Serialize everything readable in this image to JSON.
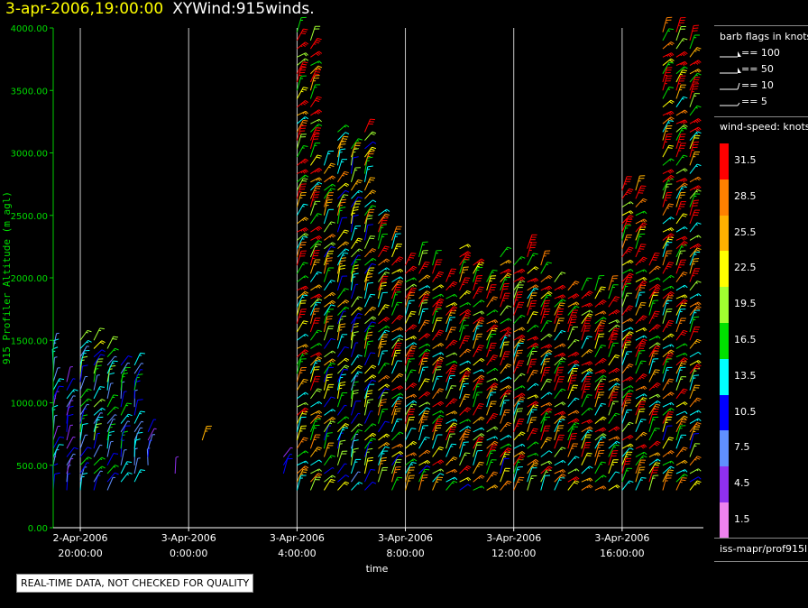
{
  "header": {
    "datetime": "3-apr-2006,19:00:00",
    "product": "XYWind:915winds."
  },
  "notice": "REAL-TIME DATA, NOT CHECKED FOR QUALITY",
  "legend": {
    "barb_title": "barb flags in knots",
    "flags": [
      {
        "label": "== 100",
        "icon": "pennant-100"
      },
      {
        "label": "== 50",
        "icon": "pennant-50"
      },
      {
        "label": "== 10",
        "icon": "full-barb-10"
      },
      {
        "label": "== 5",
        "icon": "half-barb-5"
      }
    ],
    "speed_title": "wind-speed: knots",
    "colorbar": [
      {
        "label": "31.5",
        "color": "#ff0000"
      },
      {
        "label": "28.5",
        "color": "#ff8000"
      },
      {
        "label": "25.5",
        "color": "#ffb000"
      },
      {
        "label": "22.5",
        "color": "#ffff00"
      },
      {
        "label": "19.5",
        "color": "#a0ff30"
      },
      {
        "label": "16.5",
        "color": "#00e000"
      },
      {
        "label": "13.5",
        "color": "#00ffff"
      },
      {
        "label": "10.5",
        "color": "#0000ff"
      },
      {
        "label": "7.5",
        "color": "#6090ff"
      },
      {
        "label": "4.5",
        "color": "#9030f0"
      },
      {
        "label": "1.5",
        "color": "#ee82ee"
      }
    ],
    "source": "iss-mapr/prof915l"
  },
  "chart_data": {
    "type": "scatter",
    "title": "3-apr-2006,19:00:00 XYWind:915winds.",
    "xlabel": "time",
    "ylabel": "915 Profiler Altitude (m agl)",
    "xlim": [
      "2006-04-02T19:00",
      "2006-04-03T19:00"
    ],
    "ylim": [
      0,
      4000
    ],
    "yticks": [
      "0.00",
      "500.00",
      "1000.00",
      "1500.00",
      "2000.00",
      "2500.00",
      "3000.00",
      "3500.00",
      "4000.00"
    ],
    "xticks": [
      {
        "line1": "2-Apr-2006",
        "line2": "20:00:00"
      },
      {
        "line1": "3-Apr-2006",
        "line2": "0:00:00"
      },
      {
        "line1": "3-Apr-2006",
        "line2": "4:00:00"
      },
      {
        "line1": "3-Apr-2006",
        "line2": "8:00:00"
      },
      {
        "line1": "3-Apr-2006",
        "line2": "12:00:00"
      },
      {
        "line1": "3-Apr-2006",
        "line2": "16:00:00"
      }
    ],
    "grid": "vertical",
    "profiles": [
      {
        "time": "19:00",
        "bottom": 250,
        "top": 1450,
        "speed": 12,
        "dir": 200
      },
      {
        "time": "19:30",
        "bottom": 300,
        "top": 1200,
        "speed": 10,
        "dir": 210
      },
      {
        "time": "20:00",
        "bottom": 250,
        "top": 1500,
        "speed": 15,
        "dir": 215
      },
      {
        "time": "20:30",
        "bottom": 300,
        "top": 1500,
        "speed": 17,
        "dir": 220
      },
      {
        "time": "21:00",
        "bottom": 300,
        "top": 1450,
        "speed": 16,
        "dir": 215
      },
      {
        "time": "21:30",
        "bottom": 350,
        "top": 1350,
        "speed": 15,
        "dir": 210
      },
      {
        "time": "22:00",
        "bottom": 350,
        "top": 1300,
        "speed": 13,
        "dir": 205
      },
      {
        "time": "22:30",
        "bottom": 450,
        "top": 800,
        "speed": 9,
        "dir": 200
      },
      {
        "time": "23:30",
        "bottom": 400,
        "top": 450,
        "speed": 8,
        "dir": 210
      },
      {
        "time": "0:30",
        "bottom": 650,
        "top": 700,
        "speed": 21,
        "dir": 200
      },
      {
        "time": "3:30",
        "bottom": 400,
        "top": 600,
        "speed": 11,
        "dir": 210
      },
      {
        "time": "4:00",
        "bottom": 300,
        "top": 4000,
        "speed": 30,
        "dir": 230
      },
      {
        "time": "4:30",
        "bottom": 250,
        "top": 3950,
        "speed": 30,
        "dir": 230
      },
      {
        "time": "5:00",
        "bottom": 300,
        "top": 2900,
        "speed": 24,
        "dir": 225
      },
      {
        "time": "5:30",
        "bottom": 250,
        "top": 3200,
        "speed": 22,
        "dir": 220
      },
      {
        "time": "6:00",
        "bottom": 300,
        "top": 3050,
        "speed": 20,
        "dir": 215
      },
      {
        "time": "6:30",
        "bottom": 300,
        "top": 3200,
        "speed": 23,
        "dir": 220
      },
      {
        "time": "7:00",
        "bottom": 350,
        "top": 2500,
        "speed": 26,
        "dir": 225
      },
      {
        "time": "7:30",
        "bottom": 300,
        "top": 2350,
        "speed": 28,
        "dir": 230
      },
      {
        "time": "8:00",
        "bottom": 250,
        "top": 2100,
        "speed": 29,
        "dir": 230
      },
      {
        "time": "8:30",
        "bottom": 300,
        "top": 2200,
        "speed": 28,
        "dir": 228
      },
      {
        "time": "9:00",
        "bottom": 300,
        "top": 2100,
        "speed": 30,
        "dir": 230
      },
      {
        "time": "9:30",
        "bottom": 300,
        "top": 2000,
        "speed": 30,
        "dir": 232
      },
      {
        "time": "10:00",
        "bottom": 250,
        "top": 2250,
        "speed": 30,
        "dir": 230
      },
      {
        "time": "10:30",
        "bottom": 300,
        "top": 2100,
        "speed": 30,
        "dir": 230
      },
      {
        "time": "11:00",
        "bottom": 250,
        "top": 2000,
        "speed": 31,
        "dir": 232
      },
      {
        "time": "11:30",
        "bottom": 250,
        "top": 2200,
        "speed": 30,
        "dir": 230
      },
      {
        "time": "12:00",
        "bottom": 250,
        "top": 2100,
        "speed": 31,
        "dir": 230
      },
      {
        "time": "12:30",
        "bottom": 250,
        "top": 2250,
        "speed": 30,
        "dir": 232
      },
      {
        "time": "13:00",
        "bottom": 250,
        "top": 2100,
        "speed": 30,
        "dir": 230
      },
      {
        "time": "13:30",
        "bottom": 250,
        "top": 2000,
        "speed": 31,
        "dir": 232
      },
      {
        "time": "14:00",
        "bottom": 250,
        "top": 1950,
        "speed": 31,
        "dir": 230
      },
      {
        "time": "14:30",
        "bottom": 250,
        "top": 1900,
        "speed": 31,
        "dir": 232
      },
      {
        "time": "15:00",
        "bottom": 250,
        "top": 1900,
        "speed": 31,
        "dir": 230
      },
      {
        "time": "15:30",
        "bottom": 250,
        "top": 1900,
        "speed": 31,
        "dir": 232
      },
      {
        "time": "16:00",
        "bottom": 250,
        "top": 2700,
        "speed": 31,
        "dir": 230
      },
      {
        "time": "16:30",
        "bottom": 250,
        "top": 2700,
        "speed": 31,
        "dir": 232
      },
      {
        "time": "17:00",
        "bottom": 250,
        "top": 2100,
        "speed": 31,
        "dir": 230
      },
      {
        "time": "17:30",
        "bottom": 250,
        "top": 4000,
        "speed": 30,
        "dir": 230
      },
      {
        "time": "18:00",
        "bottom": 250,
        "top": 4000,
        "speed": 30,
        "dir": 232
      },
      {
        "time": "18:30",
        "bottom": 250,
        "top": 3950,
        "speed": 29,
        "dir": 230
      }
    ]
  }
}
